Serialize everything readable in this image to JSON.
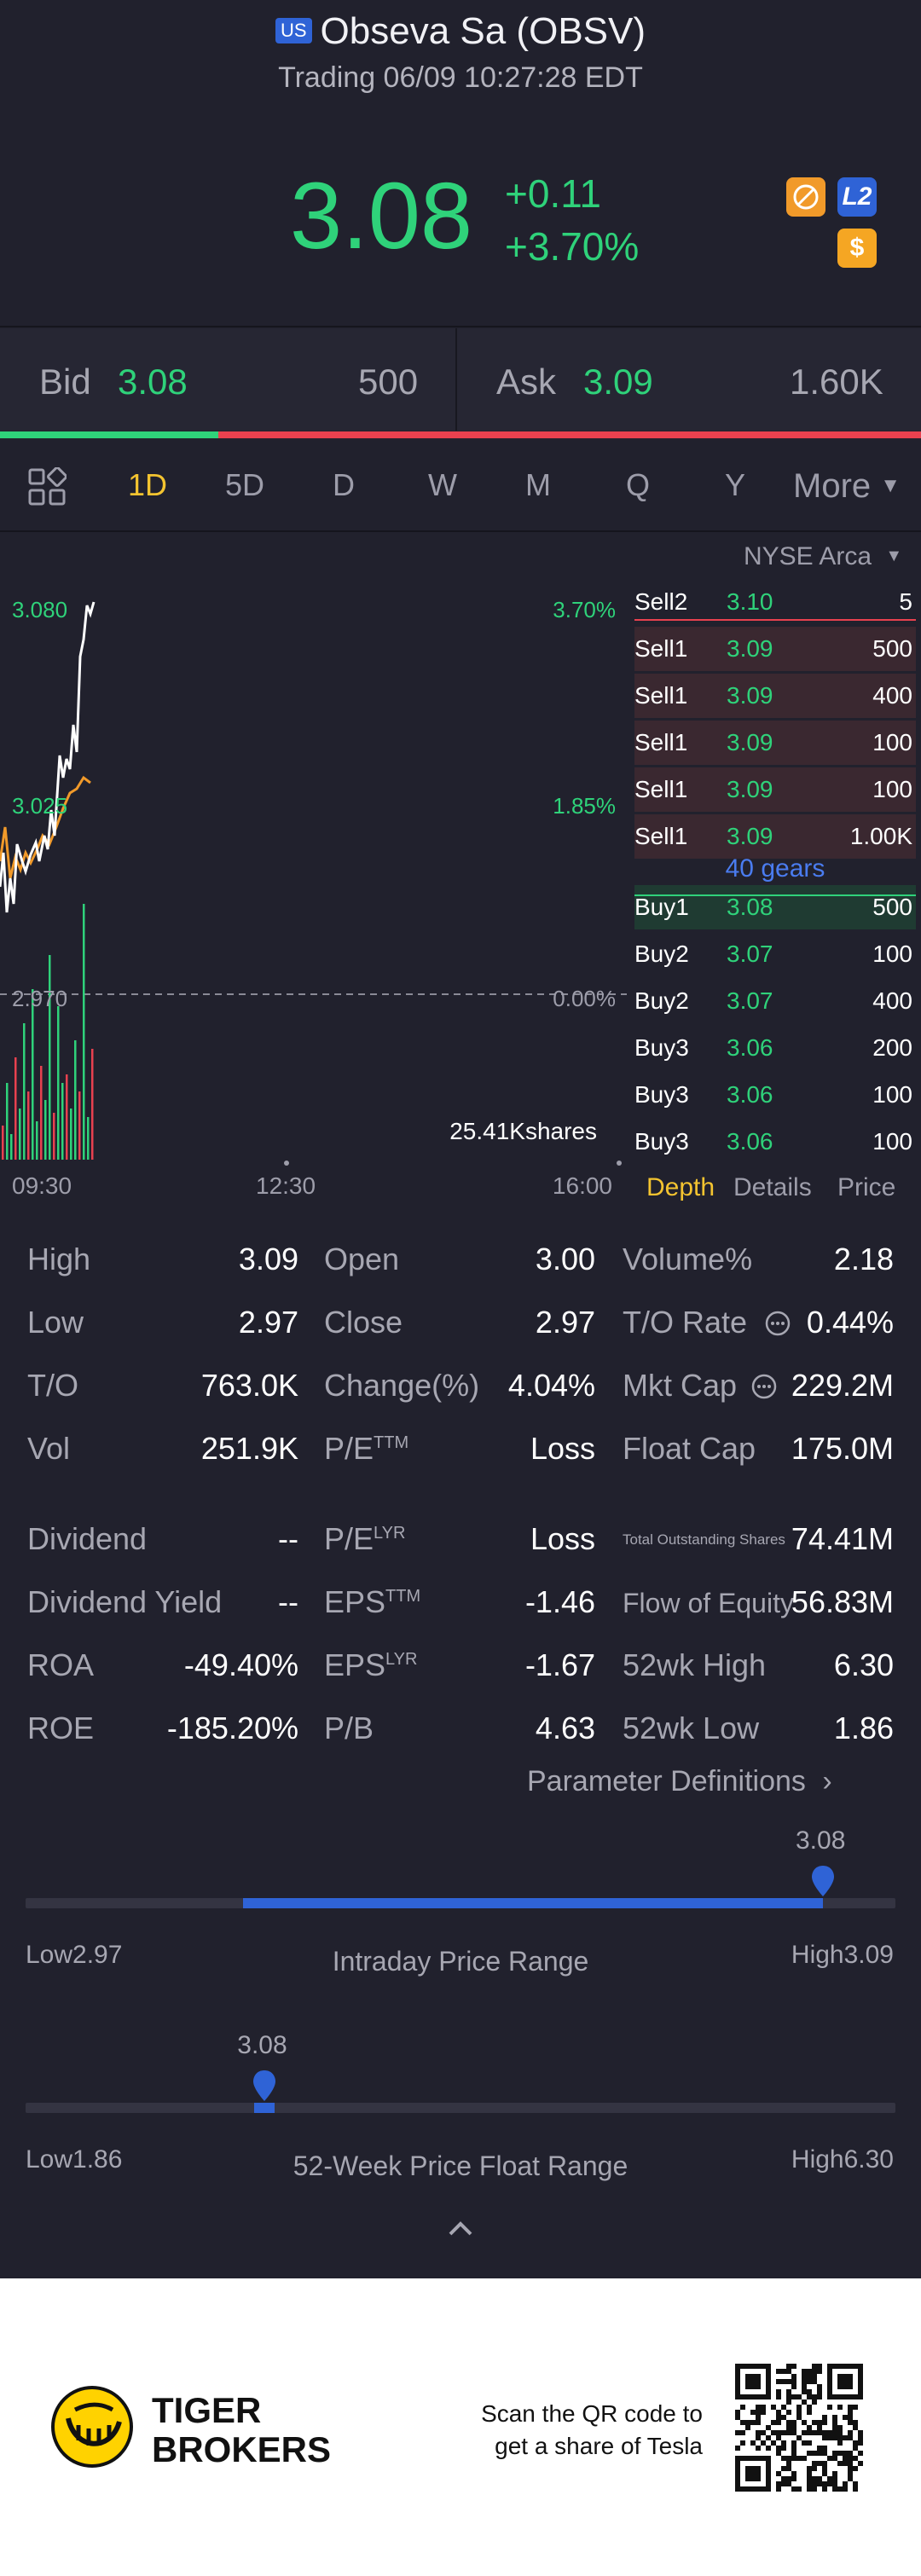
{
  "header": {
    "market_badge": "US",
    "title": "Obseva Sa (OBSV)",
    "subtitle": "Trading 06/09 10:27:28 EDT"
  },
  "quote": {
    "price": "3.08",
    "change": "+0.11",
    "change_pct": "+3.70%",
    "icons": [
      "no-short-icon",
      "level2-icon",
      "dollar-icon"
    ],
    "l2_label": "L2",
    "dollar_label": "$"
  },
  "bid_ask": {
    "bid_label": "Bid",
    "bid_price": "3.08",
    "bid_size": "500",
    "ask_label": "Ask",
    "ask_price": "3.09",
    "ask_size": "1.60K",
    "bid_share": 0.237
  },
  "tabs": [
    "1D",
    "5D",
    "D",
    "W",
    "M",
    "Q",
    "Y",
    "More"
  ],
  "active_tab": "1D",
  "chart": {
    "y_high": "3.080",
    "y_mid": "3.025",
    "y_low": "2.970",
    "pct_high": "3.70%",
    "pct_mid": "1.85%",
    "pct_low": "0.00%",
    "volume_label": "25.41Kshares",
    "time_start": "09:30",
    "time_mid": "12:30",
    "time_end": "16:00"
  },
  "orderbook": {
    "exchange": "NYSE Arca",
    "sells": [
      {
        "label": "Sell2",
        "price": "3.10",
        "size": "5"
      },
      {
        "label": "Sell1",
        "price": "3.09",
        "size": "500"
      },
      {
        "label": "Sell1",
        "price": "3.09",
        "size": "400"
      },
      {
        "label": "Sell1",
        "price": "3.09",
        "size": "100"
      },
      {
        "label": "Sell1",
        "price": "3.09",
        "size": "100"
      },
      {
        "label": "Sell1",
        "price": "3.09",
        "size": "1.00K"
      }
    ],
    "gears": "40 gears",
    "buys": [
      {
        "label": "Buy1",
        "price": "3.08",
        "size": "500"
      },
      {
        "label": "Buy2",
        "price": "3.07",
        "size": "100"
      },
      {
        "label": "Buy2",
        "price": "3.07",
        "size": "400"
      },
      {
        "label": "Buy3",
        "price": "3.06",
        "size": "200"
      },
      {
        "label": "Buy3",
        "price": "3.06",
        "size": "100"
      },
      {
        "label": "Buy3",
        "price": "3.06",
        "size": "100"
      }
    ],
    "tabs": [
      "Depth",
      "Details",
      "Price"
    ]
  },
  "stats": {
    "high_l": "High",
    "high_v": "3.09",
    "open_l": "Open",
    "open_v": "3.00",
    "volpct_l": "Volume%",
    "volpct_v": "2.18",
    "low_l": "Low",
    "low_v": "2.97",
    "close_l": "Close",
    "close_v": "2.97",
    "torate_l": "T/O Rate",
    "torate_v": "0.44%",
    "to_l": "T/O",
    "to_v": "763.0K",
    "chg_l": "Change(%)",
    "chg_v": "4.04%",
    "mktcap_l": "Mkt Cap",
    "mktcap_v": "229.2M",
    "vol_l": "Vol",
    "vol_v": "251.9K",
    "pe_l": "P/E",
    "pe_sup": "TTM",
    "pe_v": "Loss",
    "float_l": "Float Cap",
    "float_v": "175.0M",
    "div_l": "Dividend",
    "div_v": "--",
    "pelyr_l": "P/E",
    "pelyr_sup": "LYR",
    "pelyr_v": "Loss",
    "tos_l": "Total Outstanding Shares",
    "tos_v": "74.41M",
    "divy_l": "Dividend Yield",
    "divy_v": "--",
    "eps_l": "EPS",
    "eps_sup": "TTM",
    "eps_v": "-1.46",
    "foe_l": "Flow of Equity",
    "foe_v": "56.83M",
    "roa_l": "ROA",
    "roa_v": "-49.40%",
    "epslyr_l": "EPS",
    "epslyr_sup": "LYR",
    "epslyr_v": "-1.67",
    "h52_l": "52wk High",
    "h52_v": "6.30",
    "roe_l": "ROE",
    "roe_v": "-185.20%",
    "pb_l": "P/B",
    "pb_v": "4.63",
    "l52_l": "52wk Low",
    "l52_v": "1.86"
  },
  "param_def": "Parameter Definitions",
  "intraday": {
    "value": "3.08",
    "low": "Low2.97",
    "high": "High3.09",
    "title": "Intraday Price Range",
    "low_num": 2.97,
    "high_num": 3.09,
    "current": 3.08,
    "start": 3.0
  },
  "week52": {
    "value": "3.08",
    "low": "Low1.86",
    "high": "High6.30",
    "title": "52-Week Price Float Range",
    "low_num": 1.86,
    "high_num": 6.3,
    "current": 3.08
  },
  "footer": {
    "brand_line1": "TIGER",
    "brand_line2": "BROKERS",
    "cta_line1": "Scan the QR code to",
    "cta_line2": "get a share of Tesla"
  },
  "colors": {
    "up": "#2fd27a",
    "down": "#e8414f",
    "accent": "#f4c430",
    "link": "#2f63d6"
  }
}
